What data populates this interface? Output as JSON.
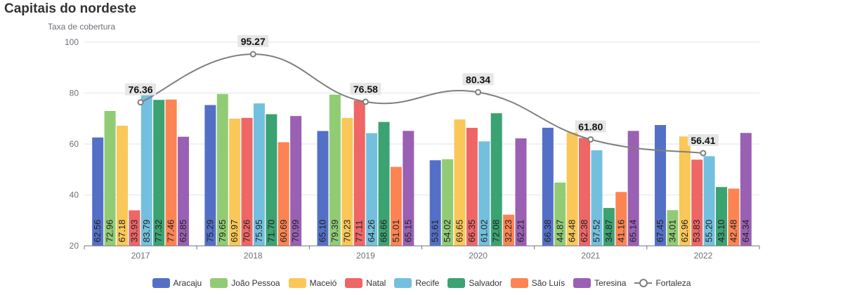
{
  "title": "Capitais do nordeste",
  "chart_data": {
    "type": "bar",
    "title": "Capitais do nordeste",
    "ylabel": "Taxa de cobertura",
    "xlabel": "",
    "ylim": [
      20,
      100
    ],
    "yticks": [
      20,
      40,
      60,
      80,
      100
    ],
    "categories": [
      "2017",
      "2018",
      "2019",
      "2020",
      "2021",
      "2022"
    ],
    "series": [
      {
        "name": "Aracaju",
        "color": "#5470c6",
        "values": [
          62.56,
          75.29,
          65.1,
          53.61,
          66.38,
          67.45
        ]
      },
      {
        "name": "João Pessoa",
        "color": "#91cc75",
        "values": [
          72.96,
          79.65,
          79.39,
          54.02,
          44.87,
          34.01
        ]
      },
      {
        "name": "Maceió",
        "color": "#fac858",
        "values": [
          67.18,
          69.97,
          70.23,
          69.65,
          64.48,
          62.96
        ]
      },
      {
        "name": "Natal",
        "color": "#ee6666",
        "values": [
          33.93,
          70.26,
          77.11,
          66.35,
          62.38,
          53.83
        ]
      },
      {
        "name": "Recife",
        "color": "#73c0de",
        "values": [
          83.79,
          75.95,
          64.26,
          61.02,
          57.52,
          55.2
        ]
      },
      {
        "name": "Salvador",
        "color": "#3ba272",
        "values": [
          77.32,
          71.7,
          68.66,
          72.08,
          34.87,
          43.1
        ]
      },
      {
        "name": "São Luís",
        "color": "#fc8452",
        "values": [
          77.46,
          60.69,
          51.01,
          32.23,
          41.16,
          42.48
        ]
      },
      {
        "name": "Teresina",
        "color": "#9a60b4",
        "values": [
          62.85,
          70.99,
          65.15,
          62.21,
          65.14,
          64.34
        ]
      }
    ],
    "line_series": [
      {
        "name": "Fortaleza",
        "type": "line",
        "smooth": true,
        "color": "#7f7f7f",
        "values": [
          76.36,
          95.27,
          76.58,
          80.34,
          61.8,
          56.41
        ]
      }
    ],
    "grid": "horizontal",
    "legend": "bottom-center"
  }
}
